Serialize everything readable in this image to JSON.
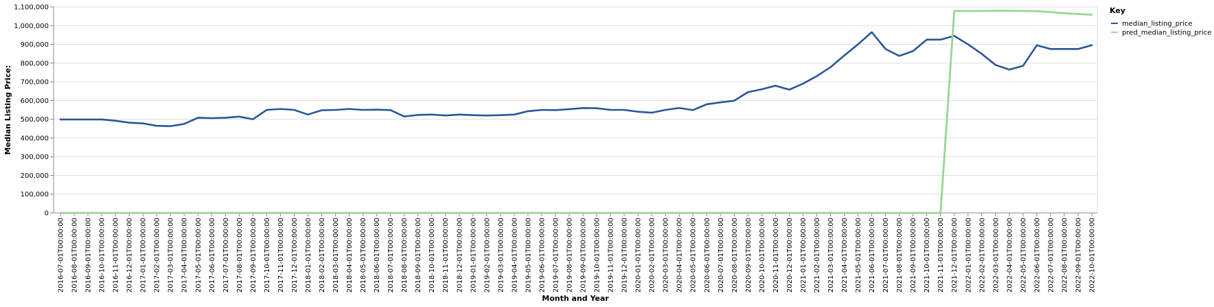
{
  "chart_data": {
    "type": "line",
    "xlabel": "Month and Year",
    "ylabel": "Median Listing Price:",
    "ylim": [
      0,
      1100000
    ],
    "y_ticks": [
      0,
      100000,
      200000,
      300000,
      400000,
      500000,
      600000,
      700000,
      800000,
      900000,
      1000000,
      1100000
    ],
    "y_tick_labels": [
      "0",
      "100,000",
      "200,000",
      "300,000",
      "400,000",
      "500,000",
      "600,000",
      "700,000",
      "800,000",
      "900,000",
      "1,000,000",
      "1,100,000"
    ],
    "grid": true,
    "legend": {
      "title": "Key",
      "placement": "right"
    },
    "categories": [
      "2016-07-01T00:00:00",
      "2016-08-01T00:00:00",
      "2016-09-01T00:00:00",
      "2016-10-01T00:00:00",
      "2016-11-01T00:00:00",
      "2016-12-01T00:00:00",
      "2017-01-01T00:00:00",
      "2017-02-01T00:00:00",
      "2017-03-01T00:00:00",
      "2017-04-01T00:00:00",
      "2017-05-01T00:00:00",
      "2017-06-01T00:00:00",
      "2017-07-01T00:00:00",
      "2017-08-01T00:00:00",
      "2017-09-01T00:00:00",
      "2017-10-01T00:00:00",
      "2017-11-01T00:00:00",
      "2017-12-01T00:00:00",
      "2018-01-01T00:00:00",
      "2018-02-01T00:00:00",
      "2018-03-01T00:00:00",
      "2018-04-01T00:00:00",
      "2018-05-01T00:00:00",
      "2018-06-01T00:00:00",
      "2018-07-01T00:00:00",
      "2018-08-01T00:00:00",
      "2018-09-01T00:00:00",
      "2018-10-01T00:00:00",
      "2018-11-01T00:00:00",
      "2018-12-01T00:00:00",
      "2019-01-01T00:00:00",
      "2019-02-01T00:00:00",
      "2019-03-01T00:00:00",
      "2019-04-01T00:00:00",
      "2019-05-01T00:00:00",
      "2019-06-01T00:00:00",
      "2019-07-01T00:00:00",
      "2019-08-01T00:00:00",
      "2019-09-01T00:00:00",
      "2019-10-01T00:00:00",
      "2019-11-01T00:00:00",
      "2019-12-01T00:00:00",
      "2020-01-01T00:00:00",
      "2020-02-01T00:00:00",
      "2020-03-01T00:00:00",
      "2020-04-01T00:00:00",
      "2020-05-01T00:00:00",
      "2020-06-01T00:00:00",
      "2020-07-01T00:00:00",
      "2020-08-01T00:00:00",
      "2020-09-01T00:00:00",
      "2020-10-01T00:00:00",
      "2020-11-01T00:00:00",
      "2020-12-01T00:00:00",
      "2021-01-01T00:00:00",
      "2021-02-01T00:00:00",
      "2021-03-01T00:00:00",
      "2021-04-01T00:00:00",
      "2021-05-01T00:00:00",
      "2021-06-01T00:00:00",
      "2021-07-01T00:00:00",
      "2021-08-01T00:00:00",
      "2021-09-01T00:00:00",
      "2021-10-01T00:00:00",
      "2021-11-01T00:00:00",
      "2021-12-01T00:00:00",
      "2022-01-01T00:00:00",
      "2022-02-01T00:00:00",
      "2022-03-01T00:00:00",
      "2022-04-01T00:00:00",
      "2022-05-01T00:00:00",
      "2022-06-01T00:00:00",
      "2022-07-01T00:00:00",
      "2022-08-01T00:00:00",
      "2022-09-01T00:00:00",
      "2022-10-01T00:00:00"
    ],
    "series": [
      {
        "name": "median_listing_price",
        "color": "#2a5599",
        "values": [
          499000,
          499000,
          499000,
          499000,
          492000,
          482000,
          478000,
          465000,
          463000,
          475000,
          508000,
          506000,
          508000,
          514000,
          500000,
          550000,
          555000,
          550000,
          525000,
          548000,
          550000,
          555000,
          550000,
          551000,
          549000,
          515000,
          523000,
          525000,
          520000,
          525000,
          522000,
          520000,
          522000,
          525000,
          543000,
          550000,
          549000,
          554000,
          560000,
          559000,
          550000,
          550000,
          540000,
          535000,
          550000,
          560000,
          549000,
          580000,
          590000,
          599000,
          645000,
          660000,
          679000,
          658000,
          690000,
          730000,
          778000,
          840000,
          900000,
          965000,
          875000,
          838000,
          864000,
          925000,
          925000,
          945000,
          900000,
          849000,
          790000,
          765000,
          785000,
          895000,
          875000,
          875000,
          875000,
          895000
        ]
      },
      {
        "name": "pred_median_listing_price",
        "color": "#98d593",
        "values": [
          0,
          0,
          0,
          0,
          0,
          0,
          0,
          0,
          0,
          0,
          0,
          0,
          0,
          0,
          0,
          0,
          0,
          0,
          0,
          0,
          0,
          0,
          0,
          0,
          0,
          0,
          0,
          0,
          0,
          0,
          0,
          0,
          0,
          0,
          0,
          0,
          0,
          0,
          0,
          0,
          0,
          0,
          0,
          0,
          0,
          0,
          0,
          0,
          0,
          0,
          0,
          0,
          0,
          0,
          0,
          0,
          0,
          0,
          0,
          0,
          0,
          0,
          0,
          0,
          0,
          1078000,
          1078000,
          1078000,
          1079000,
          1079000,
          1078000,
          1077000,
          1072000,
          1066000,
          1062000,
          1058000
        ]
      }
    ]
  }
}
